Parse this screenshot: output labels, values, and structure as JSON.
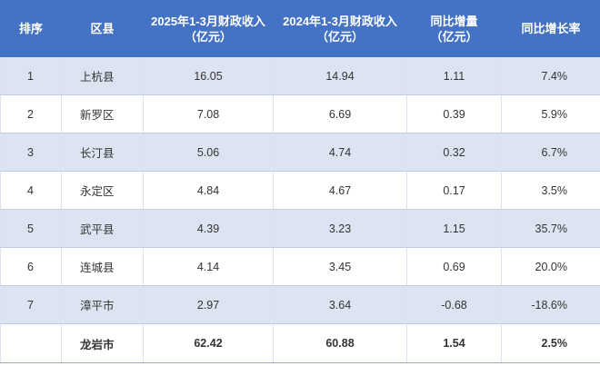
{
  "table": {
    "headers": [
      "排序",
      "区县",
      "2025年1-3月财政收入（亿元）",
      "2024年1-3月财政收入（亿元）",
      "同比增量（亿元）",
      "同比增长率"
    ],
    "header_lines": [
      [
        "排序"
      ],
      [
        "区县"
      ],
      [
        "2025年1-3月财政收入",
        "（亿元）"
      ],
      [
        "2024年1-3月财政收入",
        "（亿元）"
      ],
      [
        "同比增量",
        "（亿元）"
      ],
      [
        "同比增长率"
      ]
    ],
    "rows": [
      [
        "1",
        "上杭县",
        "16.05",
        "14.94",
        "1.11",
        "7.4%"
      ],
      [
        "2",
        "新罗区",
        "7.08",
        "6.69",
        "0.39",
        "5.9%"
      ],
      [
        "3",
        "长汀县",
        "5.06",
        "4.74",
        "0.32",
        "6.7%"
      ],
      [
        "4",
        "永定区",
        "4.84",
        "4.67",
        "0.17",
        "3.5%"
      ],
      [
        "5",
        "武平县",
        "4.39",
        "3.23",
        "1.15",
        "35.7%"
      ],
      [
        "6",
        "连城县",
        "4.14",
        "3.45",
        "0.69",
        "20.0%"
      ],
      [
        "7",
        "漳平市",
        "2.97",
        "3.64",
        "-0.68",
        "-18.6%"
      ]
    ],
    "total": [
      "",
      "龙岩市",
      "62.42",
      "60.88",
      "1.54",
      "2.5%"
    ]
  },
  "colors": {
    "header_bg": "#4472c4",
    "header_text": "#ffffff",
    "band_bg": "#dce3f1",
    "row_bg": "#ffffff",
    "text": "#333333"
  }
}
